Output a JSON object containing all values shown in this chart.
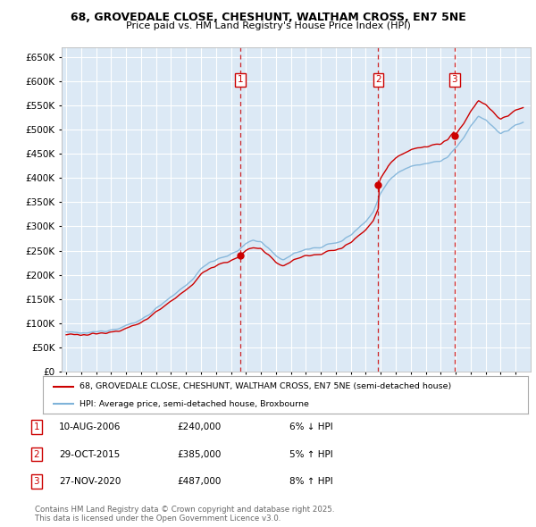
{
  "title_line1": "68, GROVEDALE CLOSE, CHESHUNT, WALTHAM CROSS, EN7 5NE",
  "title_line2": "Price paid vs. HM Land Registry's House Price Index (HPI)",
  "ylim": [
    0,
    670000
  ],
  "yticks": [
    0,
    50000,
    100000,
    150000,
    200000,
    250000,
    300000,
    350000,
    400000,
    450000,
    500000,
    550000,
    600000,
    650000
  ],
  "background_color": "#dce9f5",
  "grid_color": "#ffffff",
  "sale_color": "#cc0000",
  "hpi_color": "#7fb3d9",
  "transactions": [
    {
      "num": 1,
      "date_t": 2006.614,
      "price": 240000
    },
    {
      "num": 2,
      "date_t": 2015.831,
      "price": 385000
    },
    {
      "num": 3,
      "date_t": 2020.909,
      "price": 487000
    }
  ],
  "legend_sale_label": "68, GROVEDALE CLOSE, CHESHUNT, WALTHAM CROSS, EN7 5NE (semi-detached house)",
  "legend_hpi_label": "HPI: Average price, semi-detached house, Broxbourne",
  "footnote": "Contains HM Land Registry data © Crown copyright and database right 2025.\nThis data is licensed under the Open Government Licence v3.0.",
  "table_rows": [
    {
      "num": 1,
      "date": "10-AUG-2006",
      "price": "£240,000",
      "pct": "6% ↓ HPI"
    },
    {
      "num": 2,
      "date": "29-OCT-2015",
      "price": "£385,000",
      "pct": "5% ↑ HPI"
    },
    {
      "num": 3,
      "date": "27-NOV-2020",
      "price": "£487,000",
      "pct": "8% ↑ HPI"
    }
  ]
}
